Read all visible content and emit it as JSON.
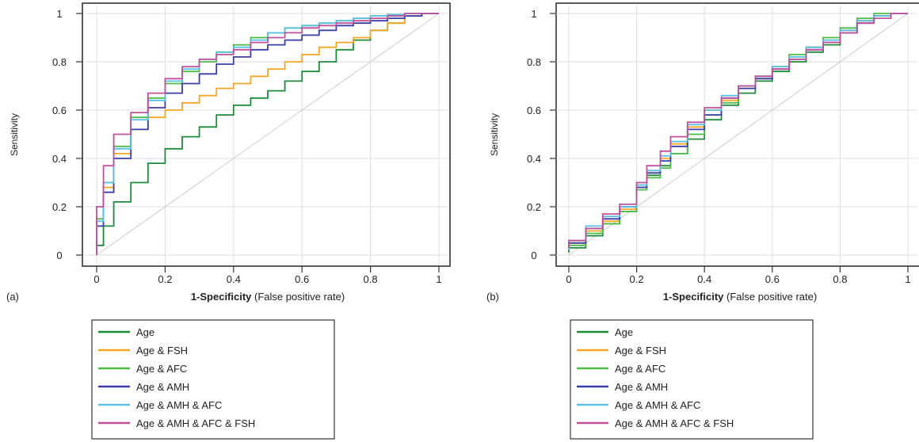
{
  "colors": {
    "Age": "#1f8a3a",
    "Age & FSH": "#f5a623",
    "Age & AFC": "#4cbb47",
    "Age & AMH": "#3a3fa8",
    "Age & AMH & AFC": "#5bc0e8",
    "Age & AMH & AFC & FSH": "#c0509c",
    "grid": "#dddddd",
    "diagonal": "#cccccc"
  },
  "chart_data": [
    {
      "type": "line",
      "panel_label": "(a)",
      "xlabel_bold": "1-Specificity",
      "xlabel_rest": " (False positive rate)",
      "ylabel": "Sensitivity",
      "xlim": [
        0,
        1
      ],
      "ylim": [
        0,
        1
      ],
      "xticks": [
        "0",
        "0.2",
        "0.4",
        "0.6",
        "0.8",
        "1"
      ],
      "yticks": [
        "0",
        "0.2",
        "0.4",
        "0.6",
        "0.8",
        "1"
      ],
      "grid": true,
      "diagonal_reference": true,
      "legend": [
        "Age",
        "Age & FSH",
        "Age & AFC",
        "Age & AMH",
        "Age & AMH & AFC",
        "Age & AMH & AFC & FSH"
      ],
      "series": [
        {
          "name": "Age",
          "x": [
            0,
            0.02,
            0.05,
            0.1,
            0.15,
            0.2,
            0.25,
            0.3,
            0.35,
            0.4,
            0.45,
            0.5,
            0.55,
            0.6,
            0.65,
            0.7,
            0.75,
            0.8,
            0.85,
            0.9,
            0.95,
            1
          ],
          "y": [
            0,
            0.04,
            0.12,
            0.22,
            0.3,
            0.38,
            0.44,
            0.49,
            0.53,
            0.58,
            0.62,
            0.65,
            0.68,
            0.72,
            0.76,
            0.8,
            0.85,
            0.89,
            0.93,
            0.96,
            0.99,
            1
          ]
        },
        {
          "name": "Age & FSH",
          "x": [
            0,
            0.02,
            0.05,
            0.1,
            0.15,
            0.2,
            0.25,
            0.3,
            0.35,
            0.4,
            0.45,
            0.5,
            0.55,
            0.6,
            0.65,
            0.7,
            0.75,
            0.8,
            0.85,
            0.9,
            0.95,
            1
          ],
          "y": [
            0,
            0.12,
            0.28,
            0.42,
            0.52,
            0.57,
            0.6,
            0.63,
            0.66,
            0.69,
            0.71,
            0.74,
            0.77,
            0.8,
            0.83,
            0.86,
            0.88,
            0.9,
            0.93,
            0.96,
            0.99,
            1
          ]
        },
        {
          "name": "Age & AFC",
          "x": [
            0,
            0.02,
            0.05,
            0.1,
            0.15,
            0.2,
            0.25,
            0.3,
            0.35,
            0.4,
            0.45,
            0.5,
            0.55,
            0.6,
            0.65,
            0.7,
            0.75,
            0.8,
            0.85,
            0.9,
            0.95,
            1
          ],
          "y": [
            0,
            0.15,
            0.3,
            0.45,
            0.57,
            0.65,
            0.71,
            0.76,
            0.8,
            0.84,
            0.87,
            0.9,
            0.92,
            0.94,
            0.95,
            0.96,
            0.97,
            0.98,
            0.99,
            0.995,
            1,
            1
          ]
        },
        {
          "name": "Age & AMH",
          "x": [
            0,
            0.02,
            0.05,
            0.1,
            0.15,
            0.2,
            0.25,
            0.3,
            0.35,
            0.4,
            0.45,
            0.5,
            0.55,
            0.6,
            0.65,
            0.7,
            0.75,
            0.8,
            0.85,
            0.9,
            0.95,
            1
          ],
          "y": [
            0,
            0.12,
            0.26,
            0.4,
            0.52,
            0.61,
            0.67,
            0.71,
            0.75,
            0.79,
            0.82,
            0.85,
            0.87,
            0.89,
            0.91,
            0.93,
            0.95,
            0.96,
            0.97,
            0.98,
            0.99,
            1
          ]
        },
        {
          "name": "Age & AMH & AFC",
          "x": [
            0,
            0.02,
            0.05,
            0.1,
            0.15,
            0.2,
            0.25,
            0.3,
            0.35,
            0.4,
            0.45,
            0.5,
            0.55,
            0.6,
            0.65,
            0.7,
            0.75,
            0.8,
            0.85,
            0.9,
            0.95,
            1
          ],
          "y": [
            0,
            0.14,
            0.3,
            0.44,
            0.56,
            0.64,
            0.72,
            0.77,
            0.81,
            0.84,
            0.86,
            0.89,
            0.92,
            0.94,
            0.95,
            0.96,
            0.97,
            0.98,
            0.99,
            0.995,
            1,
            1
          ]
        },
        {
          "name": "Age & AMH & AFC & FSH",
          "x": [
            0,
            0.02,
            0.05,
            0.1,
            0.15,
            0.2,
            0.25,
            0.3,
            0.35,
            0.4,
            0.45,
            0.5,
            0.55,
            0.6,
            0.65,
            0.7,
            0.75,
            0.8,
            0.85,
            0.9,
            0.95,
            1
          ],
          "y": [
            0,
            0.2,
            0.37,
            0.5,
            0.59,
            0.67,
            0.73,
            0.78,
            0.81,
            0.83,
            0.85,
            0.88,
            0.9,
            0.92,
            0.94,
            0.95,
            0.96,
            0.97,
            0.98,
            0.99,
            1,
            1
          ]
        }
      ]
    },
    {
      "type": "line",
      "panel_label": "(b)",
      "xlabel_bold": "1-Specificity",
      "xlabel_rest": " (False positive rate)",
      "ylabel": "Sensitivity",
      "xlim": [
        0,
        1
      ],
      "ylim": [
        0,
        1
      ],
      "xticks": [
        "0",
        "0.2",
        "0.4",
        "0.6",
        "0.8",
        "1"
      ],
      "yticks": [
        "0",
        "0.2",
        "0.4",
        "0.6",
        "0.8",
        "1"
      ],
      "grid": true,
      "diagonal_reference": true,
      "legend": [
        "Age",
        "Age & FSH",
        "Age & AFC",
        "Age & AMH",
        "Age & AMH & AFC",
        "Age & AMH & AFC & FSH"
      ],
      "series": [
        {
          "name": "Age",
          "x": [
            0,
            0.05,
            0.1,
            0.15,
            0.2,
            0.23,
            0.27,
            0.3,
            0.35,
            0.4,
            0.45,
            0.5,
            0.55,
            0.6,
            0.65,
            0.7,
            0.75,
            0.8,
            0.85,
            0.9,
            0.95,
            1
          ],
          "y": [
            0.01,
            0.03,
            0.08,
            0.13,
            0.18,
            0.28,
            0.33,
            0.37,
            0.42,
            0.48,
            0.56,
            0.62,
            0.67,
            0.72,
            0.76,
            0.8,
            0.84,
            0.87,
            0.92,
            0.97,
            0.99,
            1
          ]
        },
        {
          "name": "Age & FSH",
          "x": [
            0,
            0.05,
            0.1,
            0.15,
            0.2,
            0.23,
            0.27,
            0.3,
            0.35,
            0.4,
            0.45,
            0.5,
            0.55,
            0.6,
            0.65,
            0.7,
            0.75,
            0.8,
            0.85,
            0.9,
            0.95,
            1
          ],
          "y": [
            0.02,
            0.05,
            0.1,
            0.14,
            0.19,
            0.29,
            0.35,
            0.4,
            0.46,
            0.53,
            0.6,
            0.64,
            0.69,
            0.73,
            0.78,
            0.82,
            0.86,
            0.89,
            0.93,
            0.97,
            0.99,
            1
          ]
        },
        {
          "name": "Age & AFC",
          "x": [
            0,
            0.05,
            0.1,
            0.15,
            0.2,
            0.23,
            0.27,
            0.3,
            0.35,
            0.4,
            0.45,
            0.5,
            0.55,
            0.6,
            0.65,
            0.7,
            0.75,
            0.8,
            0.85,
            0.9,
            0.95,
            1
          ],
          "y": [
            0.02,
            0.04,
            0.09,
            0.13,
            0.18,
            0.27,
            0.32,
            0.36,
            0.42,
            0.5,
            0.58,
            0.63,
            0.7,
            0.74,
            0.78,
            0.83,
            0.86,
            0.9,
            0.94,
            0.98,
            1,
            1
          ]
        },
        {
          "name": "Age & AMH",
          "x": [
            0,
            0.05,
            0.1,
            0.15,
            0.2,
            0.23,
            0.27,
            0.3,
            0.35,
            0.4,
            0.45,
            0.5,
            0.55,
            0.6,
            0.65,
            0.7,
            0.75,
            0.8,
            0.85,
            0.9,
            0.95,
            1
          ],
          "y": [
            0.02,
            0.05,
            0.11,
            0.15,
            0.2,
            0.28,
            0.34,
            0.39,
            0.45,
            0.52,
            0.58,
            0.65,
            0.69,
            0.73,
            0.77,
            0.81,
            0.85,
            0.88,
            0.92,
            0.96,
            0.99,
            1
          ]
        },
        {
          "name": "Age & AMH & AFC",
          "x": [
            0,
            0.05,
            0.1,
            0.15,
            0.2,
            0.23,
            0.27,
            0.3,
            0.35,
            0.4,
            0.45,
            0.5,
            0.55,
            0.6,
            0.65,
            0.7,
            0.75,
            0.8,
            0.85,
            0.9,
            0.95,
            1
          ],
          "y": [
            0.02,
            0.06,
            0.12,
            0.16,
            0.2,
            0.29,
            0.35,
            0.41,
            0.47,
            0.54,
            0.6,
            0.66,
            0.7,
            0.74,
            0.78,
            0.82,
            0.86,
            0.89,
            0.93,
            0.97,
            0.99,
            1
          ]
        },
        {
          "name": "Age & AMH & AFC & FSH",
          "x": [
            0,
            0.05,
            0.1,
            0.15,
            0.2,
            0.23,
            0.27,
            0.3,
            0.35,
            0.4,
            0.45,
            0.5,
            0.55,
            0.6,
            0.65,
            0.7,
            0.75,
            0.8,
            0.85,
            0.9,
            0.95,
            1
          ],
          "y": [
            0.03,
            0.06,
            0.11,
            0.17,
            0.21,
            0.3,
            0.37,
            0.43,
            0.49,
            0.55,
            0.61,
            0.65,
            0.7,
            0.74,
            0.77,
            0.81,
            0.85,
            0.88,
            0.92,
            0.96,
            0.98,
            1
          ]
        }
      ]
    }
  ]
}
